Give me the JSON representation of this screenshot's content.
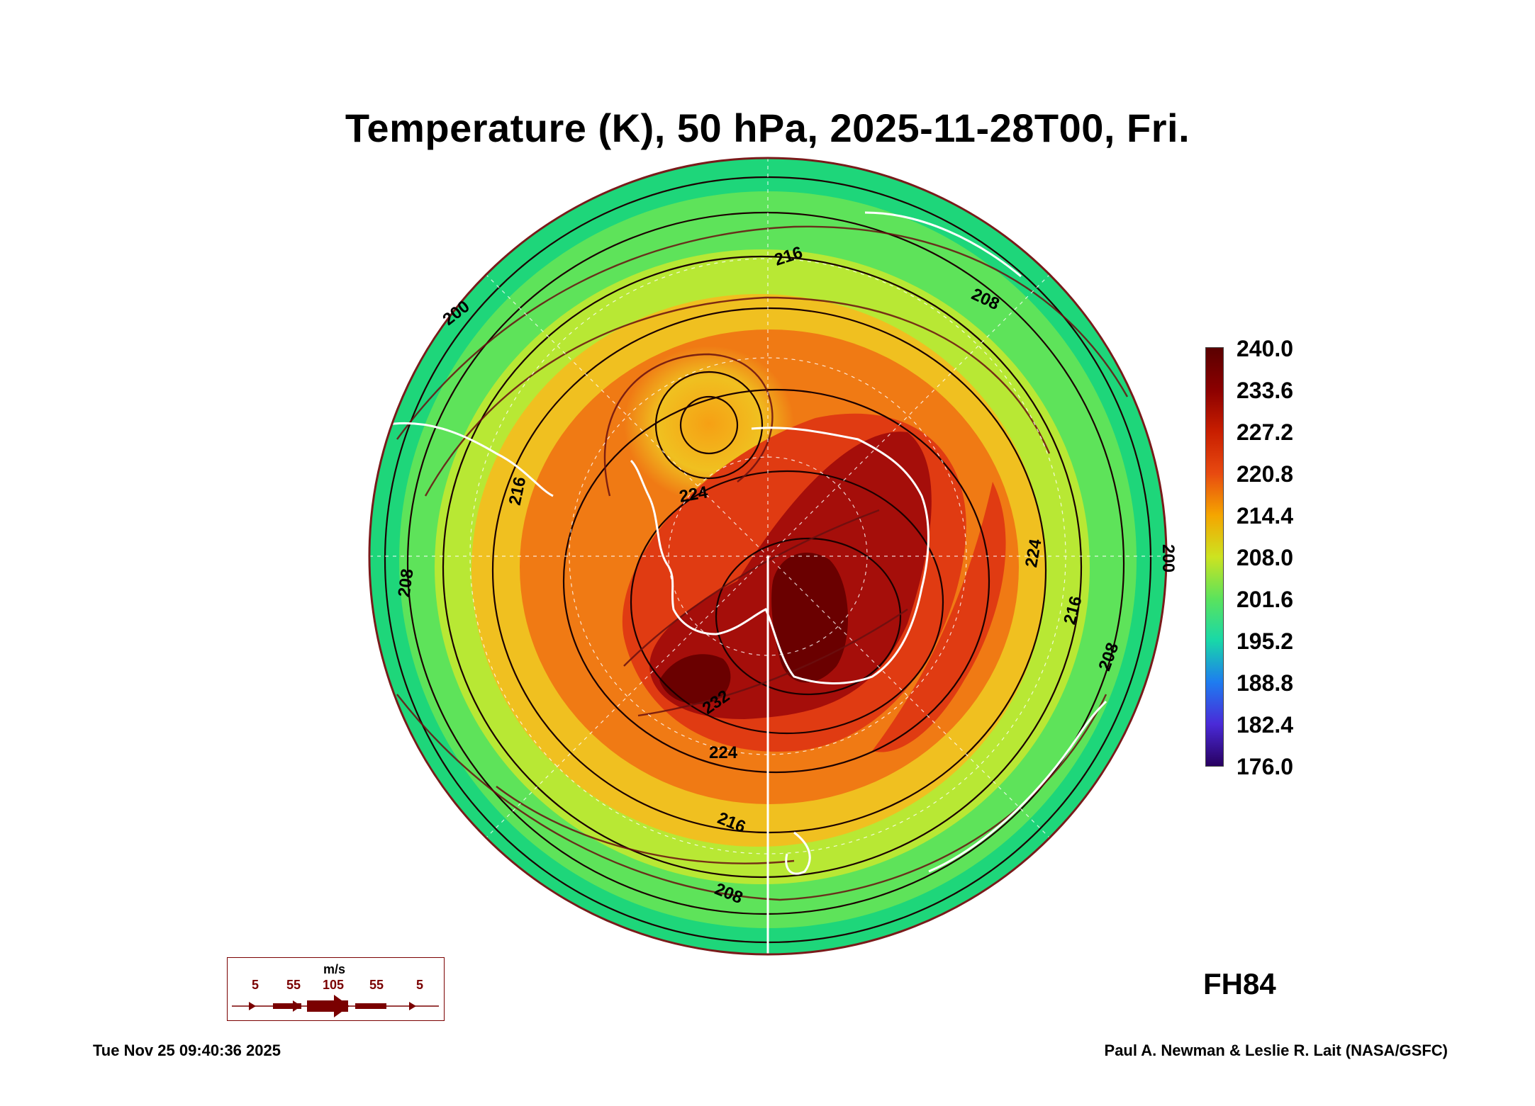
{
  "title": "Temperature (K), 50 hPa, 2025-11-28T00, Fri.",
  "forecast_hour": "FH84",
  "timestamp": "Tue Nov 25 09:40:36 2025",
  "credit": "Paul A. Newman & Leslie R. Lait (NASA/GSFC)",
  "colorbar": {
    "labels": [
      "240.0",
      "233.6",
      "227.2",
      "220.8",
      "214.4",
      "208.0",
      "201.6",
      "195.2",
      "188.8",
      "182.4",
      "176.0"
    ],
    "colors": [
      "#5a0000",
      "#8b0000",
      "#c81e00",
      "#e84a10",
      "#f5a500",
      "#cde320",
      "#5be35c",
      "#18d8a8",
      "#1e7cf0",
      "#4a2ad8",
      "#280060"
    ]
  },
  "contour_labels": [
    "216",
    "208",
    "200",
    "216",
    "224",
    "208",
    "224",
    "216",
    "208",
    "232",
    "224",
    "216",
    "208",
    "200"
  ],
  "wind_legend": {
    "unit": "m/s",
    "speeds": [
      "5",
      "55",
      "105",
      "55",
      "5"
    ]
  },
  "field_colors": {
    "edge": "#1ed67a",
    "outer": "#5ee35a",
    "mid": "#b8e834",
    "yellow": "#f0c020",
    "orange": "#f07a14",
    "red": "#e03b12",
    "darkred": "#a50e0a",
    "maroon": "#6a0000",
    "coast": "#ffffff",
    "contour": "#1a0000",
    "stream": "#6a1010"
  }
}
